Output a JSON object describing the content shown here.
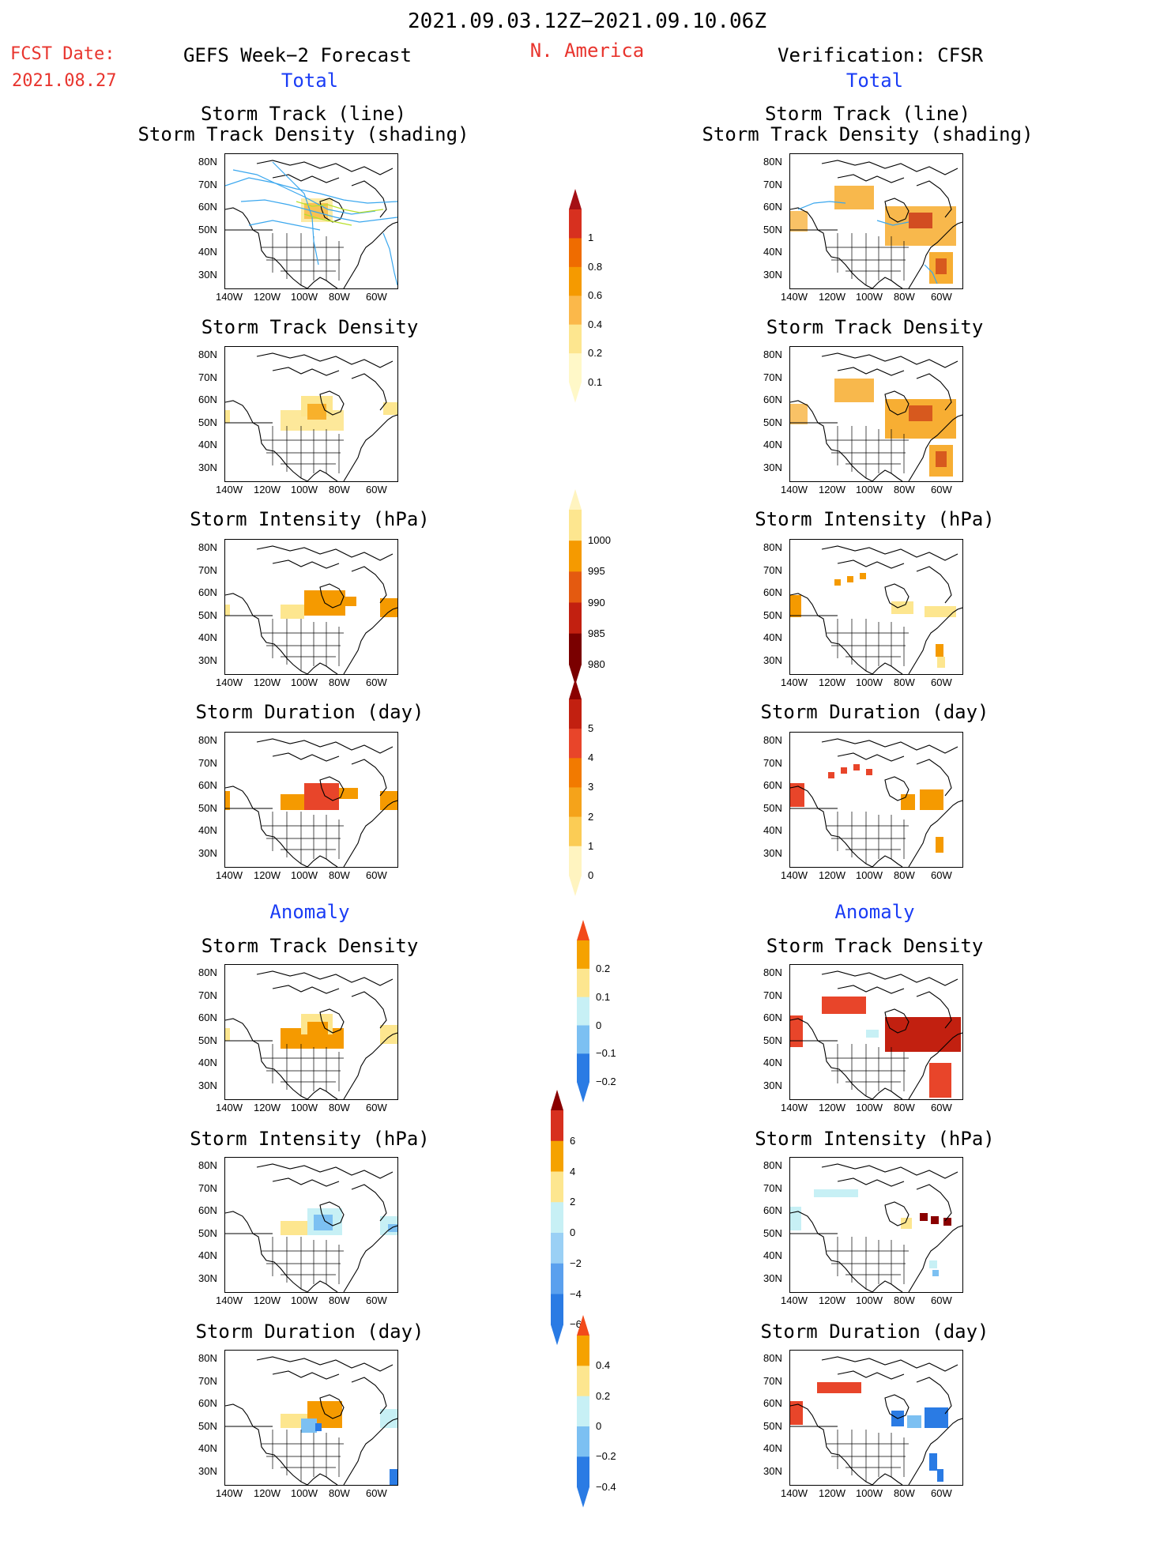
{
  "header": {
    "time_range": "2021.09.03.12Z−2021.09.10.06Z",
    "fcst_label": "FCST Date:",
    "fcst_date": "2021.08.27",
    "left_title": "GEFS Week−2 Forecast",
    "region": "N. America",
    "right_title": "Verification: CFSR",
    "total_label": "Total",
    "anomaly_label": "Anomaly"
  },
  "panel_titles": {
    "track_line": "Storm Track (line)",
    "track_shading": "Storm Track Density (shading)",
    "density": "Storm Track Density",
    "intensity": "Storm Intensity (hPa)",
    "duration": "Storm Duration (day)"
  },
  "axes": {
    "lat_ticks": [
      "80N",
      "70N",
      "60N",
      "50N",
      "40N",
      "30N"
    ],
    "lon_ticks": [
      "140W",
      "120W",
      "100W",
      "80W",
      "60W"
    ]
  },
  "colors": {
    "title_red": "#e8352e",
    "title_blue": "#1a3cf5",
    "track_line": "#3aa7ee",
    "track_line_alt": "#b8e02a"
  },
  "colorbars": [
    {
      "id": "density_total",
      "labels": [
        "1",
        "0.8",
        "0.6",
        "0.4",
        "0.2",
        "0.1"
      ],
      "colors": [
        "#a50f15",
        "#d7301f",
        "#ef6c00",
        "#f59a00",
        "#fbb84a",
        "#fde68f",
        "#fff8c8"
      ]
    },
    {
      "id": "intensity_total",
      "labels": [
        "1000",
        "995",
        "990",
        "985",
        "980"
      ],
      "colors": [
        "#fff4c0",
        "#fde68f",
        "#f59a00",
        "#e45a10",
        "#c22010",
        "#7a0000"
      ]
    },
    {
      "id": "duration_total",
      "labels": [
        "5",
        "4",
        "3",
        "2",
        "1",
        "0"
      ],
      "colors": [
        "#8a0000",
        "#c22010",
        "#e8452a",
        "#f27a00",
        "#f5a31a",
        "#fbcc55",
        "#fff4c0"
      ]
    },
    {
      "id": "density_anom",
      "labels": [
        "0.2",
        "0.1",
        "0",
        "−0.1",
        "−0.2"
      ],
      "colors": [
        "#f24a1a",
        "#f5a200",
        "#fde68f",
        "#c7f0f5",
        "#7cc0f2",
        "#2a7be4"
      ]
    },
    {
      "id": "intensity_anom",
      "labels": [
        "6",
        "4",
        "2",
        "0",
        "−2",
        "−4",
        "−6"
      ],
      "colors": [
        "#8a0000",
        "#d7301f",
        "#f5a200",
        "#fde68f",
        "#c7f0f5",
        "#9ad0f5",
        "#5aa0ee",
        "#2a7be4"
      ]
    },
    {
      "id": "duration_anom",
      "labels": [
        "0.4",
        "0.2",
        "0",
        "−0.2",
        "−0.4"
      ],
      "colors": [
        "#f24a1a",
        "#f5a200",
        "#fde68f",
        "#c7f0f5",
        "#7cc0f2",
        "#2a7be4"
      ]
    }
  ]
}
